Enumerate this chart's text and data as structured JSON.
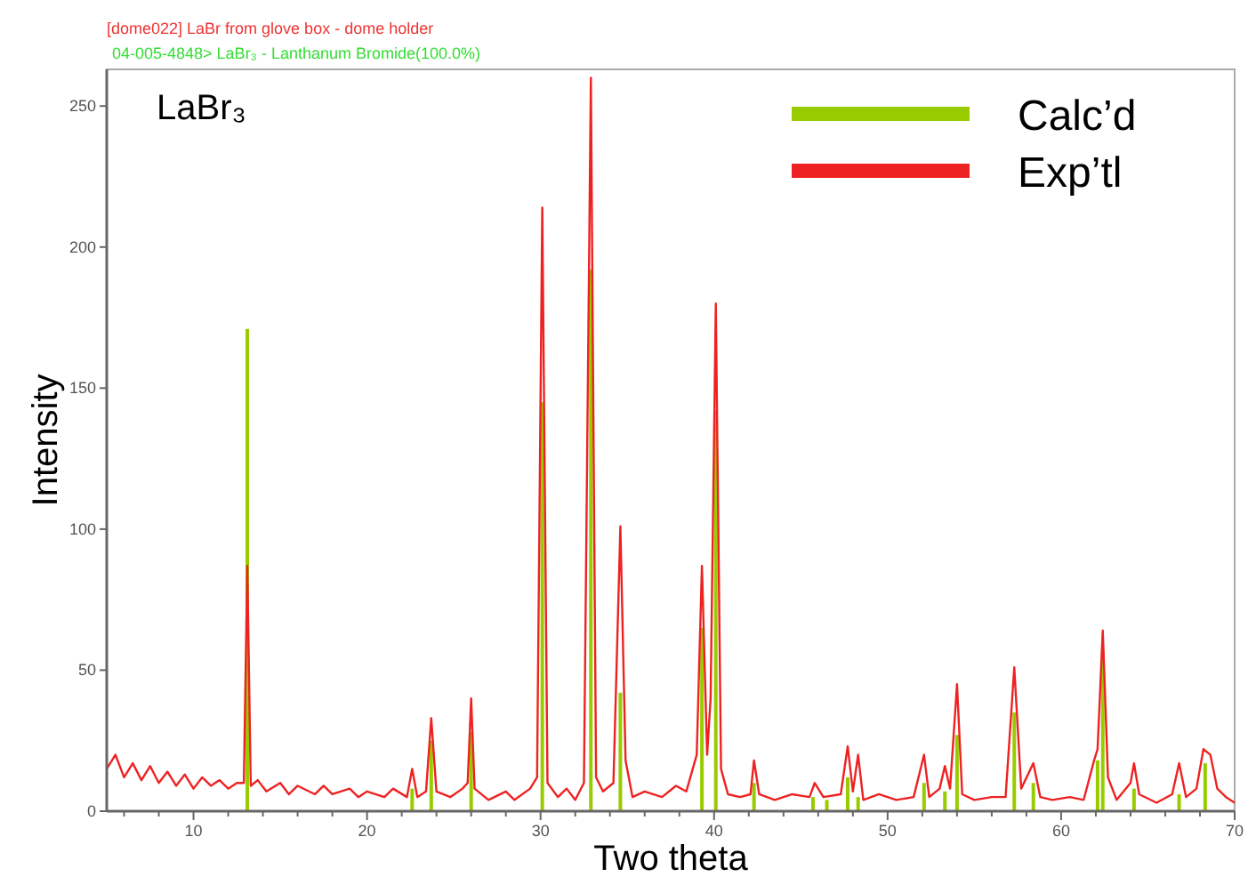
{
  "chart_data": {
    "type": "line",
    "title": "[dome022] LaBr from glove box - dome holder",
    "subtitle": "04-005-4848> LaBr₃ - Lanthanum Bromide(100.0%)",
    "xlabel": "Two theta",
    "ylabel": "Intensity",
    "annotations": [
      "LaBr₃"
    ],
    "xlim": [
      5,
      70
    ],
    "ylim": [
      0,
      263
    ],
    "xticks": [
      {
        "value": 6,
        "label": null
      },
      {
        "value": 8,
        "label": null
      },
      10,
      {
        "value": 12,
        "label": null
      },
      {
        "value": 14,
        "label": null
      },
      {
        "value": 16,
        "label": null
      },
      {
        "value": 18,
        "label": null
      },
      20,
      {
        "value": 22,
        "label": null
      },
      {
        "value": 24,
        "label": null
      },
      {
        "value": 26,
        "label": null
      },
      {
        "value": 28,
        "label": null
      },
      30,
      {
        "value": 32,
        "label": null
      },
      {
        "value": 34,
        "label": null
      },
      {
        "value": 36,
        "label": null
      },
      {
        "value": 38,
        "label": null
      },
      40,
      {
        "value": 42,
        "label": null
      },
      {
        "value": 44,
        "label": null
      },
      {
        "value": 46,
        "label": null
      },
      {
        "value": 48,
        "label": null
      },
      50,
      {
        "value": 52,
        "label": null
      },
      {
        "value": 54,
        "label": null
      },
      {
        "value": 56,
        "label": null
      },
      {
        "value": 58,
        "label": null
      },
      60,
      {
        "value": 62,
        "label": null
      },
      {
        "value": 64,
        "label": null
      },
      {
        "value": 66,
        "label": null
      },
      {
        "value": 68,
        "label": null
      },
      70
    ],
    "yticks": [
      0,
      50,
      100,
      150,
      200,
      250
    ],
    "grid": false,
    "legend": "top right",
    "marker": "none",
    "series": [
      {
        "name": "Calc’d",
        "type": "bar",
        "color": "#99cc00",
        "x": [
          13.1,
          22.6,
          23.7,
          26,
          30.1,
          32.9,
          34.6,
          39.3,
          40.1,
          42.3,
          45.7,
          46.5,
          47.7,
          48.3,
          52.1,
          53.3,
          54,
          57.3,
          58.4,
          62.1,
          62.4,
          64.2,
          66.8,
          68.3
        ],
        "values": [
          171,
          8,
          25,
          28,
          145,
          192,
          42,
          65,
          142,
          10,
          5,
          4,
          12,
          5,
          10,
          7,
          27,
          35,
          10,
          18,
          57,
          8,
          6,
          17
        ]
      },
      {
        "name": "Exp’tl",
        "color": "#ee2222",
        "x": [
          5,
          5.5,
          6,
          6.5,
          7,
          7.5,
          8,
          8.5,
          9,
          9.5,
          10,
          10.5,
          11,
          11.5,
          12,
          12.5,
          12.9,
          13.1,
          13.3,
          13.7,
          14.2,
          15,
          15.5,
          16,
          17,
          17.5,
          18,
          19,
          19.5,
          20,
          21,
          21.5,
          22.3,
          22.6,
          22.9,
          23.4,
          23.7,
          24,
          24.8,
          25.5,
          25.8,
          26,
          26.2,
          27,
          28,
          28.5,
          29.4,
          29.8,
          30.1,
          30.4,
          31,
          31.5,
          32,
          32.5,
          32.9,
          33.2,
          33.6,
          34.2,
          34.6,
          34.9,
          35.3,
          36,
          37,
          37.8,
          38.4,
          39,
          39.3,
          39.6,
          39.8,
          40.1,
          40.4,
          40.8,
          41.5,
          42.1,
          42.3,
          42.6,
          43.5,
          44.5,
          45.5,
          45.8,
          46.3,
          47.3,
          47.7,
          48,
          48.3,
          48.6,
          49.5,
          50.5,
          51.5,
          52.1,
          52.4,
          53,
          53.3,
          53.6,
          54,
          54.3,
          55,
          56,
          56.8,
          57.3,
          57.7,
          58.4,
          58.8,
          59.5,
          60.5,
          61.3,
          61.9,
          62.1,
          62.4,
          62.7,
          63.2,
          64,
          64.2,
          64.5,
          65.5,
          66.4,
          66.8,
          67.2,
          67.8,
          68.2,
          68.6,
          69,
          69.5,
          70
        ],
        "values": [
          15,
          20,
          12,
          17,
          11,
          16,
          10,
          14,
          9,
          13,
          8,
          12,
          9,
          11,
          8,
          10,
          10,
          87,
          9,
          11,
          7,
          10,
          6,
          9,
          6,
          9,
          6,
          8,
          5,
          7,
          5,
          8,
          5,
          15,
          5,
          7,
          33,
          7,
          5,
          8,
          10,
          40,
          8,
          4,
          7,
          4,
          8,
          12,
          214,
          10,
          5,
          8,
          4,
          10,
          260,
          12,
          7,
          10,
          101,
          18,
          5,
          7,
          5,
          9,
          7,
          20,
          87,
          20,
          40,
          180,
          15,
          6,
          5,
          6,
          18,
          6,
          4,
          6,
          5,
          10,
          5,
          6,
          23,
          7,
          20,
          4,
          6,
          4,
          5,
          20,
          5,
          8,
          16,
          8,
          45,
          6,
          4,
          5,
          5,
          51,
          8,
          17,
          5,
          4,
          5,
          4,
          18,
          22,
          64,
          12,
          4,
          10,
          17,
          6,
          3,
          6,
          17,
          5,
          8,
          22,
          20,
          8,
          5,
          3
        ]
      }
    ]
  }
}
